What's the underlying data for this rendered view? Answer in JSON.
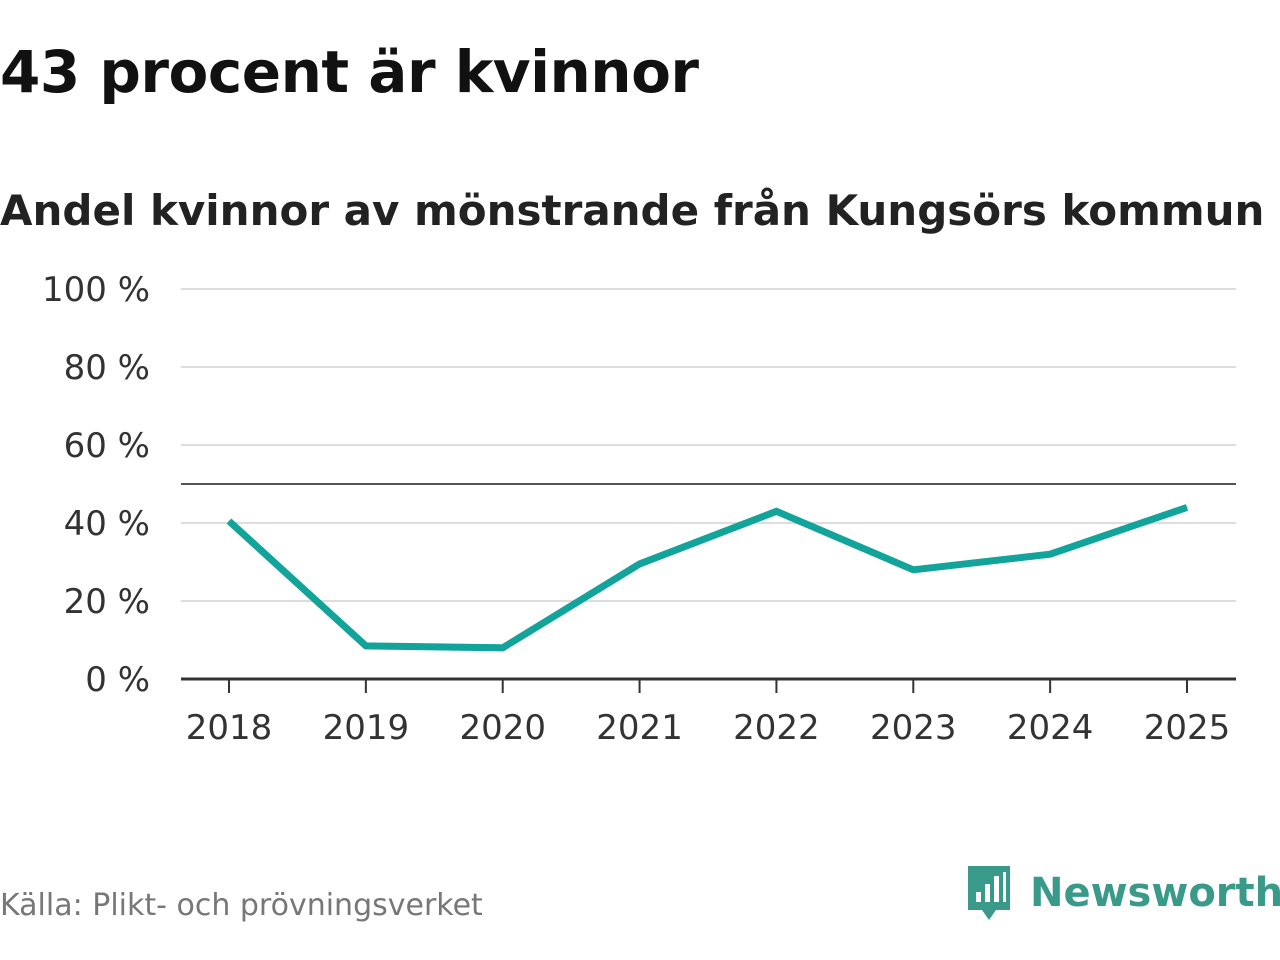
{
  "title": "43 procent är kvinnor",
  "subtitle": "Andel kvinnor av mönstrande från Kungsörs kommun",
  "source": "Källa: Plikt- och prövningsverket",
  "brand": {
    "name": "Newsworthy",
    "icon": "newsworthy-logo-icon",
    "color": "#3a9a8a"
  },
  "colors": {
    "line": "#12a39a",
    "grid": "#dddddd",
    "reference": "#555555",
    "axis": "#333333"
  },
  "chart_data": {
    "type": "line",
    "x": [
      "2018",
      "2019",
      "2020",
      "2021",
      "2022",
      "2023",
      "2024",
      "2025"
    ],
    "series": [
      {
        "values": [
          40.5,
          8.5,
          8,
          29.5,
          43,
          28,
          32,
          44
        ]
      }
    ],
    "ylim": [
      0,
      100
    ],
    "yticks": [
      0,
      20,
      40,
      60,
      80,
      100
    ],
    "ytick_labels": [
      "0 %",
      "20 %",
      "40 %",
      "60 %",
      "80 %",
      "100 %"
    ],
    "reference_line": 50,
    "grid": true,
    "xlabel": "",
    "ylabel": ""
  }
}
